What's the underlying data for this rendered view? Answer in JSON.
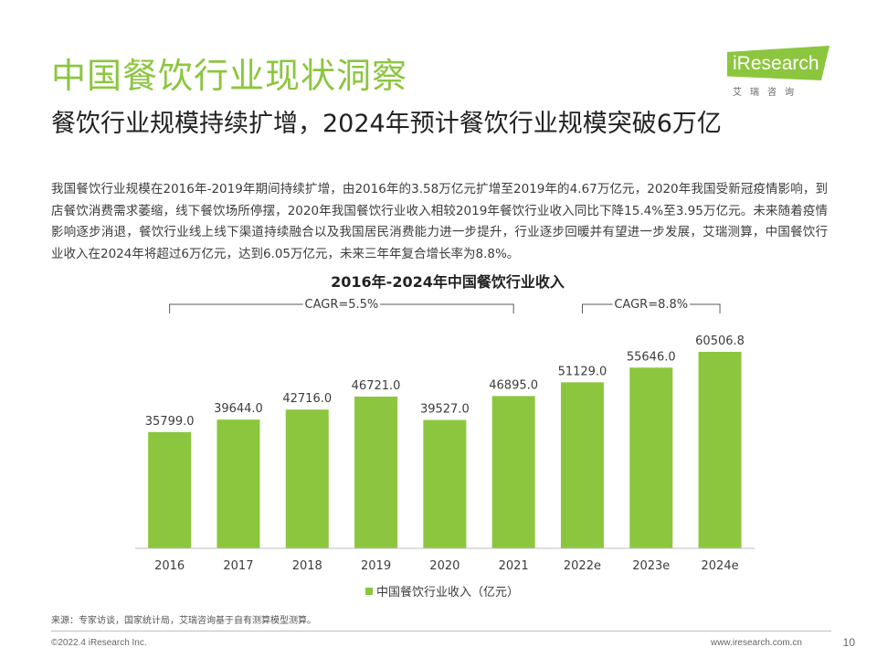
{
  "header": {
    "title": "中国餐饮行业现状洞察",
    "logo_word": "iResearch",
    "logo_sub": "艾瑞咨询"
  },
  "subtitle": "餐饮行业规模持续扩增，2024年预计餐饮行业规模突破6万亿",
  "body_text": "我国餐饮行业规模在2016年-2019年期间持续扩增，由2016年的3.58万亿元扩增至2019年的4.67万亿元，2020年我国受新冠疫情影响，到店餐饮消费需求萎缩，线下餐饮场所停摆，2020年我国餐饮行业收入相较2019年餐饮行业收入同比下降15.4%至3.95万亿元。未来随着疫情影响逐步消退，餐饮行业线上线下渠道持续融合以及我国居民消费能力进一步提升，行业逐步回暖并有望进一步发展，艾瑞测算，中国餐饮行业收入在2024年将超过6万亿元，达到6.05万亿元，未来三年年复合增长率为8.8%。",
  "chart_data": {
    "type": "bar",
    "title": "2016年-2024年中国餐饮行业收入",
    "categories": [
      "2016",
      "2017",
      "2018",
      "2019",
      "2020",
      "2021",
      "2022e",
      "2023e",
      "2024e"
    ],
    "series": [
      {
        "name": "中国餐饮行业收入（亿元）",
        "values": [
          35799.0,
          39644.0,
          42716.0,
          46721.0,
          39527.0,
          46895.0,
          51129.0,
          55646.0,
          60506.8
        ],
        "labels": [
          "35799.0",
          "39644.0",
          "42716.0",
          "46721.0",
          "39527.0",
          "46895.0",
          "51129.0",
          "55646.0",
          "60506.8"
        ],
        "color": "#8cc63e"
      }
    ],
    "annotations": [
      {
        "text": "CAGR=5.5%",
        "from": "2016",
        "to": "2021"
      },
      {
        "text": "CAGR=8.8%",
        "from": "2022e",
        "to": "2024e"
      }
    ],
    "ylim": [
      0,
      70000
    ],
    "grid": false,
    "legend": "bottom-center"
  },
  "footer": {
    "source": "来源：专家访谈，国家统计局，艾瑞咨询基于自有测算模型测算。",
    "copyright": "©2022.4 iResearch Inc.",
    "site": "www.iresearch.com.cn",
    "page": "10"
  },
  "colors": {
    "accent": "#8cc63e",
    "axis": "#bfbfbf",
    "text": "#3c3c3c"
  }
}
